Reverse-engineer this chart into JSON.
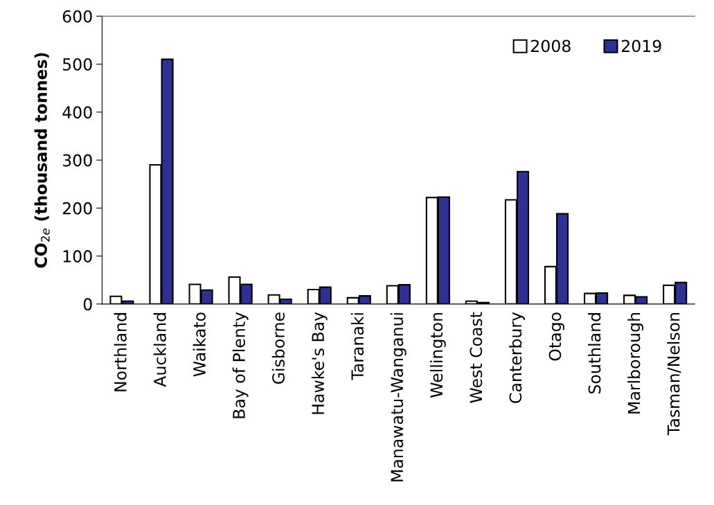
{
  "chart_data": {
    "type": "bar",
    "ylabel": "CO$_{2e}$ (thousand tonnes)",
    "categories": [
      "Northland",
      "Auckland",
      "Waikato",
      "Bay of Plenty",
      "Gisborne",
      "Hawke's Bay",
      "Taranaki",
      "Manawatu-Wanganui",
      "Wellington",
      "West Coast",
      "Canterbury",
      "Otago",
      "Southland",
      "Marlborough",
      "Tasman/Nelson"
    ],
    "series": [
      {
        "name": "2008",
        "color": "#ffffff",
        "values": [
          16,
          290,
          41,
          56,
          19,
          30,
          13,
          38,
          222,
          6,
          217,
          78,
          22,
          18,
          39
        ]
      },
      {
        "name": "2019",
        "color": "#2e3192",
        "values": [
          6,
          510,
          29,
          41,
          10,
          35,
          17,
          40,
          223,
          3,
          276,
          188,
          23,
          15,
          45
        ]
      }
    ],
    "ylim": [
      0,
      600
    ],
    "yticks": [
      0,
      100,
      200,
      300,
      400,
      500,
      600
    ],
    "grid": false,
    "legend": "top right"
  }
}
